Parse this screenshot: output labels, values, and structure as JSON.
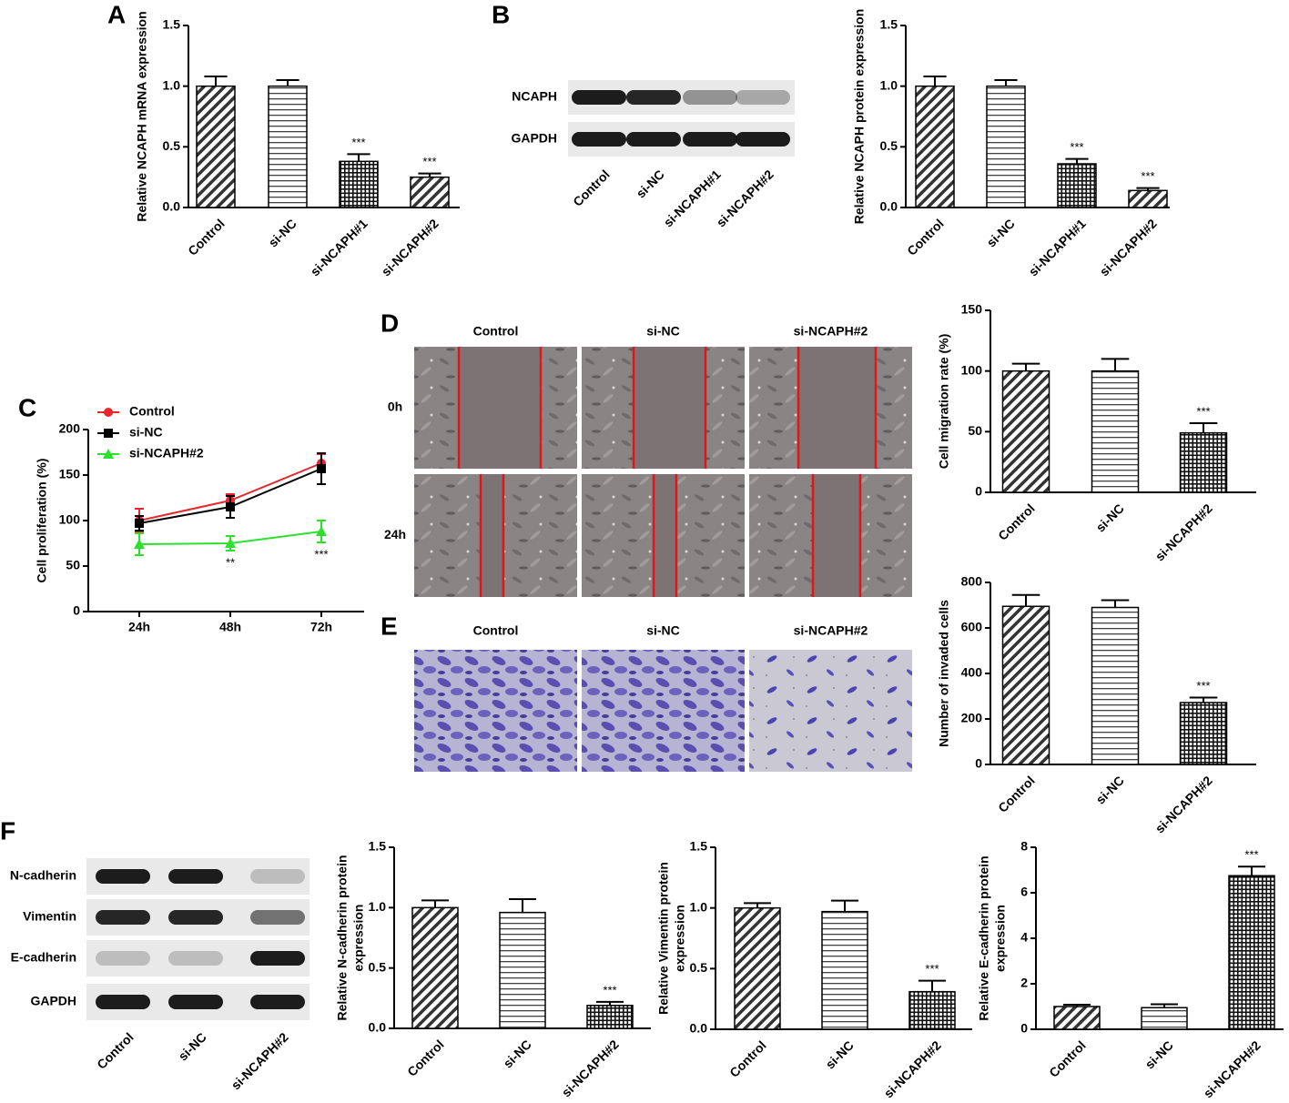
{
  "panels": [
    "A",
    "B",
    "C",
    "D",
    "E",
    "F"
  ],
  "blot_B": {
    "rows": [
      "NCAPH",
      "GAPDH"
    ],
    "lanes": [
      "Control",
      "si-NC",
      "si-NCAPH#1",
      "si-NCAPH#2"
    ]
  },
  "migration": {
    "columns": [
      "Control",
      "si-NC",
      "si-NCAPH#2"
    ],
    "rows": [
      "0h",
      "24h"
    ]
  },
  "invasion": {
    "columns": [
      "Control",
      "si-NC",
      "si-NCAPH#2"
    ]
  },
  "blot_F": {
    "rows": [
      "N-cadherin",
      "Vimentin",
      "E-cadherin",
      "GAPDH"
    ],
    "lanes": [
      "Control",
      "si-NC",
      "si-NCAPH#2"
    ]
  },
  "chart_data": [
    {
      "type": "bar",
      "ylabel": [
        "Relative NCAPH mRNA expression"
      ],
      "categories": [
        "Control",
        "si-NC",
        "si-NCAPH#1",
        "si-NCAPH#2"
      ],
      "values": [
        1.0,
        1.0,
        0.38,
        0.25
      ],
      "errors": [
        0.08,
        0.05,
        0.06,
        0.03
      ],
      "sig_labels": [
        null,
        null,
        "***",
        "***"
      ],
      "patterns": [
        "diagonal",
        "horizontal",
        "grid",
        "diagonal"
      ],
      "ylim": [
        0,
        1.5
      ],
      "yticks": [
        {
          "value": 0,
          "label": "0.0"
        },
        {
          "value": 0.5,
          "label": "0.5"
        },
        {
          "value": 1,
          "label": "1.0"
        },
        {
          "value": 1.5,
          "label": "1.5"
        }
      ]
    },
    {
      "type": "bar",
      "ylabel": [
        "Relative NCAPH protein expression"
      ],
      "categories": [
        "Control",
        "si-NC",
        "si-NCAPH#1",
        "si-NCAPH#2"
      ],
      "values": [
        1.0,
        1.0,
        0.36,
        0.14
      ],
      "errors": [
        0.08,
        0.05,
        0.04,
        0.02
      ],
      "sig_labels": [
        null,
        null,
        "***",
        "***"
      ],
      "patterns": [
        "diagonal",
        "horizontal",
        "grid",
        "diagonal"
      ],
      "ylim": [
        0,
        1.5
      ],
      "yticks": [
        {
          "value": 0,
          "label": "0.0"
        },
        {
          "value": 0.5,
          "label": "0.5"
        },
        {
          "value": 1,
          "label": "1.0"
        },
        {
          "value": 1.5,
          "label": "1.5"
        }
      ]
    },
    {
      "type": "line",
      "ylabel": [
        "Cell proliferation (%)"
      ],
      "categories": [
        "24h",
        "48h",
        "72h"
      ],
      "series": [
        {
          "name": "Control",
          "color": "#e8262b",
          "marker": "circle",
          "values": [
            100,
            122,
            163
          ],
          "errors": [
            13,
            7,
            10
          ],
          "sig_labels": [
            null,
            null,
            null
          ]
        },
        {
          "name": "si-NC",
          "color": "#000000",
          "marker": "square",
          "values": [
            97,
            115,
            157
          ],
          "errors": [
            8,
            12,
            17
          ],
          "sig_labels": [
            null,
            null,
            null
          ]
        },
        {
          "name": "si-NCAPH#2",
          "color": "#2ee02e",
          "marker": "triangle",
          "values": [
            74,
            75,
            88
          ],
          "errors": [
            12,
            8,
            12
          ],
          "sig_labels": [
            null,
            "**",
            "***"
          ]
        }
      ],
      "ylim": [
        0,
        200
      ],
      "yticks": [
        0,
        50,
        100,
        150,
        200
      ],
      "legend": "upper left"
    },
    {
      "type": "bar",
      "ylabel": [
        "Cell migration rate (%)"
      ],
      "categories": [
        "Control",
        "si-NC",
        "si-NCAPH#2"
      ],
      "values": [
        100,
        100,
        49
      ],
      "errors": [
        6,
        10,
        8
      ],
      "sig_labels": [
        null,
        null,
        "***"
      ],
      "patterns": [
        "diagonal",
        "horizontal",
        "grid"
      ],
      "ylim": [
        0,
        150
      ],
      "yticks": [
        0,
        50,
        100,
        150
      ]
    },
    {
      "type": "bar",
      "ylabel": [
        "Number of invaded cells"
      ],
      "categories": [
        "Control",
        "si-NC",
        "si-NCAPH#2"
      ],
      "values": [
        695,
        690,
        272
      ],
      "errors": [
        50,
        32,
        22
      ],
      "sig_labels": [
        null,
        null,
        "***"
      ],
      "patterns": [
        "diagonal",
        "horizontal",
        "grid"
      ],
      "ylim": [
        0,
        800
      ],
      "yticks": [
        0,
        200,
        400,
        600,
        800
      ]
    },
    {
      "type": "bar",
      "ylabel": [
        "Relative N-cadherin protein",
        "expression"
      ],
      "categories": [
        "Control",
        "si-NC",
        "si-NCAPH#2"
      ],
      "values": [
        1.0,
        0.96,
        0.19
      ],
      "errors": [
        0.06,
        0.11,
        0.03
      ],
      "sig_labels": [
        null,
        null,
        "***"
      ],
      "patterns": [
        "diagonal",
        "horizontal",
        "grid"
      ],
      "ylim": [
        0,
        1.5
      ],
      "yticks": [
        {
          "value": 0,
          "label": "0.0"
        },
        {
          "value": 0.5,
          "label": "0.5"
        },
        {
          "value": 1,
          "label": "1.0"
        },
        {
          "value": 1.5,
          "label": "1.5"
        }
      ]
    },
    {
      "type": "bar",
      "ylabel": [
        "Relative Vimentin protein",
        "expression"
      ],
      "categories": [
        "Control",
        "si-NC",
        "si-NCAPH#2"
      ],
      "values": [
        1.0,
        0.97,
        0.31
      ],
      "errors": [
        0.04,
        0.09,
        0.09
      ],
      "sig_labels": [
        null,
        null,
        "***"
      ],
      "patterns": [
        "diagonal",
        "horizontal",
        "grid"
      ],
      "ylim": [
        0,
        1.5
      ],
      "yticks": [
        {
          "value": 0,
          "label": "0.0"
        },
        {
          "value": 0.5,
          "label": "0.5"
        },
        {
          "value": 1,
          "label": "1.0"
        },
        {
          "value": 1.5,
          "label": "1.5"
        }
      ]
    },
    {
      "type": "bar",
      "ylabel": [
        "Relative E-cadherin protein",
        "expression"
      ],
      "categories": [
        "Control",
        "si-NC",
        "si-NCAPH#2"
      ],
      "values": [
        1.0,
        0.95,
        6.75
      ],
      "errors": [
        0.08,
        0.15,
        0.4
      ],
      "sig_labels": [
        null,
        null,
        "***"
      ],
      "patterns": [
        "diagonal",
        "horizontal",
        "grid"
      ],
      "ylim": [
        0,
        8
      ],
      "yticks": [
        0,
        2,
        4,
        6,
        8
      ]
    }
  ]
}
